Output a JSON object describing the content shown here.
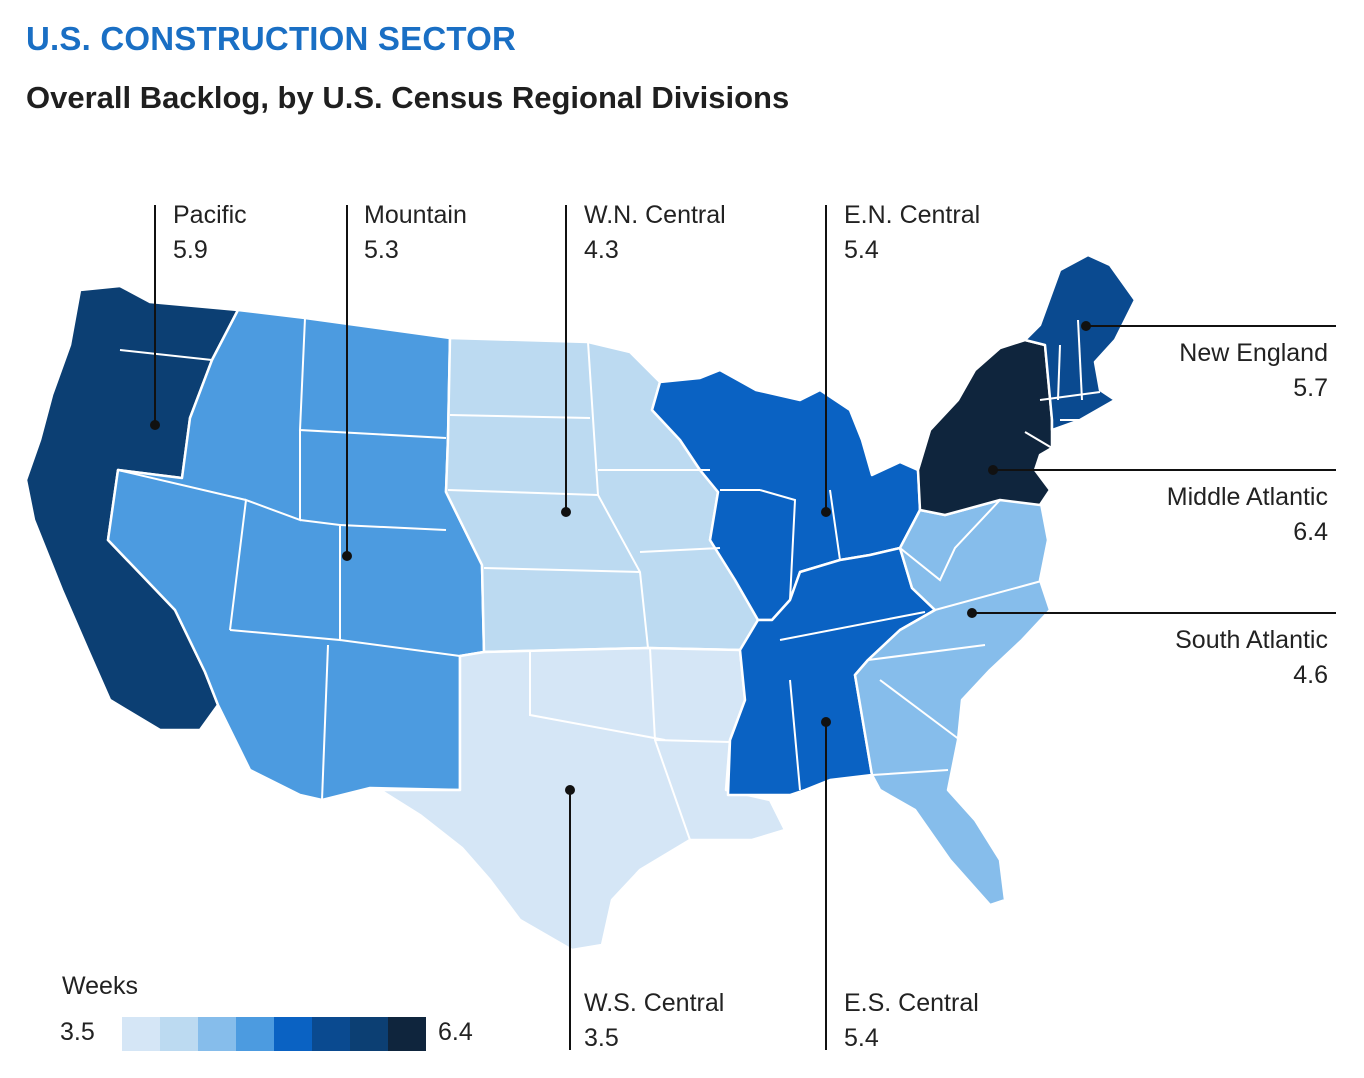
{
  "header": {
    "title": "U.S. CONSTRUCTION SECTOR",
    "subtitle": "Overall Backlog, by U.S. Census Regional Divisions"
  },
  "divisions": [
    {
      "key": "pacific",
      "name": "Pacific",
      "value": "5.9",
      "color": "#0c3f73"
    },
    {
      "key": "mountain",
      "name": "Mountain",
      "value": "5.3",
      "color": "#4c9be0"
    },
    {
      "key": "wn_central",
      "name": "W.N. Central",
      "value": "4.3",
      "color": "#bcdaf1"
    },
    {
      "key": "en_central",
      "name": "E.N. Central",
      "value": "5.4",
      "color": "#0a62c3"
    },
    {
      "key": "new_england",
      "name": "New England",
      "value": "5.7",
      "color": "#0a4a90"
    },
    {
      "key": "middle_atlantic",
      "name": "Middle Atlantic",
      "value": "6.4",
      "color": "#0f253d"
    },
    {
      "key": "south_atlantic",
      "name": "South Atlantic",
      "value": "4.6",
      "color": "#86bdeb"
    },
    {
      "key": "ws_central",
      "name": "W.S. Central",
      "value": "3.5",
      "color": "#d5e6f6"
    },
    {
      "key": "es_central",
      "name": "E.S. Central",
      "value": "5.4",
      "color": "#0a62c3"
    }
  ],
  "legend": {
    "title": "Weeks",
    "min_label": "3.5",
    "max_label": "6.4",
    "colors": [
      "#d5e6f6",
      "#bcdaf1",
      "#86bdeb",
      "#4c9be0",
      "#0a62c3",
      "#0a4a90",
      "#0c3f73",
      "#0f253d"
    ]
  },
  "colors": {
    "title": "#1a6fc4",
    "border": "#ffffff",
    "leader": "#111111"
  }
}
